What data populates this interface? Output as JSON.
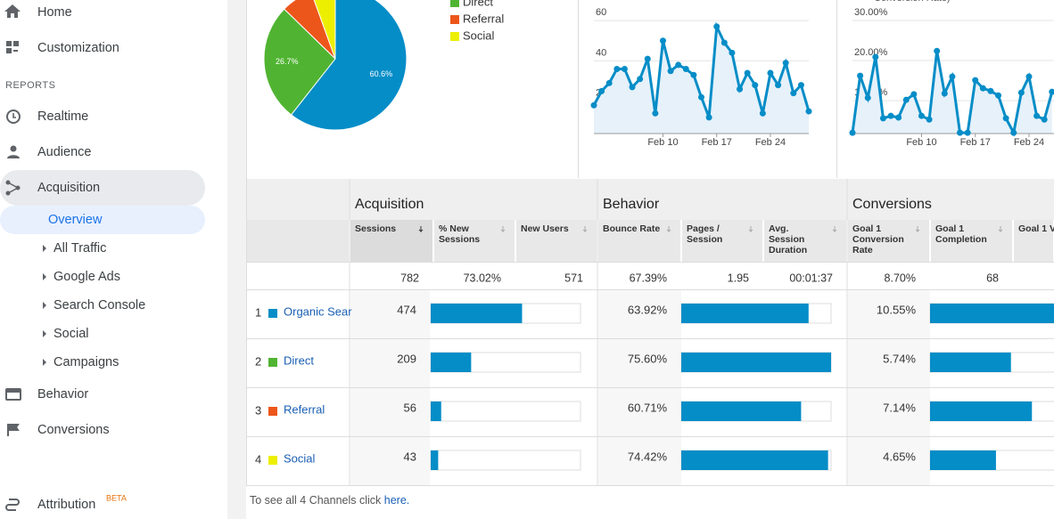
{
  "sidebar": {
    "items": [
      "Home",
      "Customization"
    ],
    "section": "REPORTS",
    "reports": [
      "Realtime",
      "Audience",
      "Acquisition"
    ],
    "active": "Overview",
    "sub": [
      "All Traffic",
      "Google Ads",
      "Search Console",
      "Social",
      "Campaigns"
    ],
    "more": [
      "Behavior",
      "Conversions"
    ],
    "attribution": "Attribution",
    "badge": "BETA"
  },
  "pie": {
    "type": "pie",
    "values": [
      60.6,
      26.7,
      7.2,
      5.5
    ],
    "value_labels": [
      "60.6%",
      "26.7%",
      null,
      null
    ],
    "colors": [
      "#058dc7",
      "#50b432",
      "#ed561b",
      "#edef00"
    ],
    "legend": [
      {
        "name": "Direct",
        "color": "#50b432"
      },
      {
        "name": "Referral",
        "color": "#ed561b"
      },
      {
        "name": "Social",
        "color": "#edef00"
      }
    ]
  },
  "line1": {
    "type": "line",
    "x": [
      1,
      2,
      3,
      4,
      5,
      6,
      7,
      8,
      9,
      10,
      11,
      12,
      13,
      14,
      15,
      16,
      17,
      18,
      19,
      20,
      21,
      22,
      23,
      24,
      25,
      26,
      27,
      28,
      29
    ],
    "values": [
      18,
      25,
      29,
      36,
      36,
      27,
      31,
      41,
      14,
      50,
      35,
      38,
      36,
      33,
      22,
      12,
      57,
      49,
      44,
      26,
      34,
      28,
      14,
      34,
      28,
      39,
      24,
      28,
      15
    ],
    "color": "#058dc7",
    "xlim": [
      1,
      29
    ],
    "ylim": [
      4,
      64
    ],
    "yticks": [
      20,
      40,
      60
    ],
    "xticks": [
      {
        "value": 10,
        "label": "Feb 10"
      },
      {
        "value": 17,
        "label": "Feb 17"
      },
      {
        "value": 24,
        "label": "Feb 24"
      }
    ],
    "grid": true
  },
  "line2": {
    "type": "line",
    "title": "Conversion Rate)",
    "x": [
      1,
      2,
      3,
      4,
      5,
      6,
      7,
      8,
      9,
      10,
      11,
      12,
      13,
      14,
      15,
      16,
      17,
      18,
      19,
      20,
      21,
      22,
      23,
      24,
      25,
      26,
      27
    ],
    "values": [
      2.0,
      16.2,
      10.7,
      20.9,
      5.6,
      6.2,
      5.8,
      10.2,
      11.6,
      6.2,
      5.3,
      22.4,
      11.8,
      16.0,
      2.0,
      2.0,
      15.1,
      13.1,
      12.4,
      11.3,
      5.6,
      2.0,
      12.0,
      16.0,
      6.2,
      5.3,
      12.2
    ],
    "color": "#058dc7",
    "xlim": [
      1,
      29
    ],
    "ylim": [
      1.8,
      32
    ],
    "yticks": [
      {
        "value": 10,
        "label": "10.00%"
      },
      {
        "value": 20,
        "label": "20.00%"
      },
      {
        "value": 30,
        "label": "30.00%"
      }
    ],
    "xticks": [
      {
        "value": 10,
        "label": "Feb 10"
      },
      {
        "value": 17,
        "label": "Feb 17"
      },
      {
        "value": 24,
        "label": "Feb 24"
      }
    ],
    "grid": true
  },
  "table": {
    "groups": [
      "Acquisition",
      "Behavior",
      "Conversions"
    ],
    "columns": [
      [
        "Sessions"
      ],
      [
        "% New",
        "Sessions"
      ],
      [
        "New Users"
      ],
      [
        "Bounce Rate"
      ],
      [
        "Pages /",
        "Session"
      ],
      [
        "Avg.",
        "Session",
        "Duration"
      ],
      [
        "Goal 1",
        "Conversion",
        "Rate"
      ],
      [
        "Goal 1",
        "Completion"
      ],
      [
        "Goal 1 V"
      ]
    ],
    "totals": [
      782,
      "73.02%",
      571,
      "67.39%",
      1.95,
      "00:01:37",
      "8.70%",
      68
    ],
    "rows": [
      {
        "index": 1,
        "channel": "Organic Sear",
        "color": "#058dc7",
        "sessions": 474,
        "bounce": "63.92%",
        "conversion": "10.55%",
        "sessions_bar": 61,
        "pages_bar": 85,
        "conversion_bar": 100
      },
      {
        "index": 2,
        "channel": "Direct",
        "color": "#50b432",
        "sessions": 209,
        "bounce": "75.60%",
        "conversion": "5.74%",
        "sessions_bar": 27,
        "pages_bar": 100,
        "conversion_bar": 54
      },
      {
        "index": 3,
        "channel": "Referral",
        "color": "#ed561b",
        "sessions": 56,
        "bounce": "60.71%",
        "conversion": "7.14%",
        "sessions_bar": 7,
        "pages_bar": 80,
        "conversion_bar": 68
      },
      {
        "index": 4,
        "channel": "Social",
        "color": "#edef00",
        "sessions": 43,
        "bounce": "74.42%",
        "conversion": "4.65%",
        "sessions_bar": 5,
        "pages_bar": 98,
        "conversion_bar": 44
      }
    ]
  },
  "footer": {
    "text": "To see all 4 Channels click ",
    "link": "here."
  }
}
